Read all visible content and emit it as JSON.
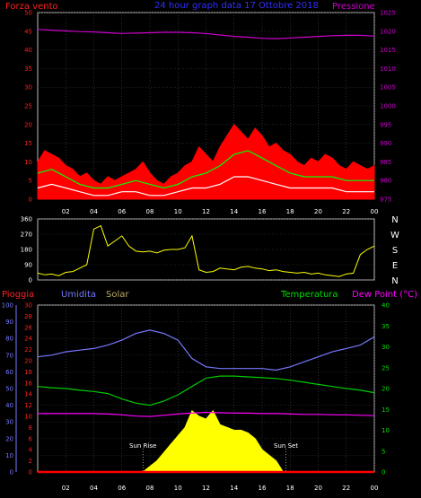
{
  "chart_data": [
    {
      "type": "line",
      "panel": "wind-pressure",
      "title": "24 hour graph data  17 Ottobre 2018",
      "left_label": "Forza vento",
      "right_label": "Pressione",
      "left_ticks": [
        "0",
        "5",
        "10",
        "15",
        "20",
        "25",
        "30",
        "35",
        "40",
        "45",
        "50"
      ],
      "right_ticks": [
        "975",
        "980",
        "985",
        "990",
        "995",
        "1000",
        "1005",
        "1010",
        "1015",
        "1020",
        "1025"
      ],
      "ylim_left": [
        0,
        50
      ],
      "ylim_right": [
        975,
        1025
      ],
      "x_ticks": [
        "02",
        "04",
        "06",
        "08",
        "10",
        "12",
        "14",
        "16",
        "18",
        "20",
        "22",
        "00"
      ],
      "series": [
        {
          "role": "gust",
          "color": "#ff0000",
          "x": [
            0,
            0.5,
            1,
            1.5,
            2,
            2.5,
            3,
            3.5,
            4,
            4.5,
            5,
            5.5,
            6,
            6.5,
            7,
            7.5,
            8,
            8.5,
            9,
            9.5,
            10,
            10.5,
            11,
            11.5,
            12,
            12.5,
            13,
            13.5,
            14,
            14.5,
            15,
            15.5,
            16,
            16.5,
            17,
            17.5,
            18,
            18.5,
            19,
            19.5,
            20,
            20.5,
            21,
            21.5,
            22,
            22.5,
            23,
            23.5,
            24
          ],
          "values": [
            10,
            13,
            12,
            11,
            9,
            8,
            6,
            7,
            5,
            4,
            6,
            5,
            6,
            7,
            8,
            10,
            7,
            5,
            4,
            6,
            7,
            9,
            10,
            14,
            12,
            10,
            14,
            17,
            20,
            18,
            16,
            19,
            17,
            14,
            15,
            13,
            12,
            10,
            9,
            11,
            10,
            12,
            11,
            9,
            8,
            10,
            9,
            8,
            9
          ]
        },
        {
          "role": "avg-wind",
          "color": "#00ff00",
          "x": [
            0,
            1,
            2,
            3,
            4,
            5,
            6,
            7,
            8,
            9,
            10,
            11,
            12,
            13,
            14,
            15,
            16,
            17,
            18,
            19,
            20,
            21,
            22,
            23,
            24
          ],
          "values": [
            7,
            8,
            6,
            4,
            3,
            3,
            4,
            5,
            4,
            3,
            4,
            6,
            7,
            9,
            12,
            13,
            11,
            9,
            7,
            6,
            6,
            6,
            5,
            5,
            5
          ]
        },
        {
          "role": "min-wind",
          "color": "#ffffff",
          "x": [
            0,
            1,
            2,
            3,
            4,
            5,
            6,
            7,
            8,
            9,
            10,
            11,
            12,
            13,
            14,
            15,
            16,
            17,
            18,
            19,
            20,
            21,
            22,
            23,
            24
          ],
          "values": [
            3,
            4,
            3,
            2,
            1,
            1,
            2,
            2,
            1,
            1,
            2,
            3,
            3,
            4,
            6,
            6,
            5,
            4,
            3,
            3,
            3,
            3,
            2,
            2,
            2
          ]
        },
        {
          "role": "pressure",
          "color": "#cc00cc",
          "x": [
            0,
            1,
            2,
            3,
            4,
            5,
            6,
            7,
            8,
            9,
            10,
            11,
            12,
            13,
            14,
            15,
            16,
            17,
            18,
            19,
            20,
            21,
            22,
            23,
            24
          ],
          "values": [
            1020.5,
            1020.3,
            1020.1,
            1019.9,
            1019.8,
            1019.6,
            1019.4,
            1019.5,
            1019.6,
            1019.7,
            1019.7,
            1019.6,
            1019.4,
            1019.0,
            1018.6,
            1018.4,
            1018.1,
            1018.0,
            1018.2,
            1018.4,
            1018.6,
            1018.8,
            1018.9,
            1018.9,
            1018.7
          ]
        }
      ]
    },
    {
      "type": "line",
      "panel": "wind-direction",
      "left_ticks": [
        "0",
        "90",
        "180",
        "270",
        "360"
      ],
      "ylim": [
        0,
        360
      ],
      "compass": [
        "N",
        "W",
        "S",
        "E",
        "N"
      ],
      "series": [
        {
          "role": "direction",
          "color": "#ffff00",
          "x": [
            0,
            0.5,
            1,
            1.5,
            2,
            2.5,
            3,
            3.5,
            4,
            4.5,
            5,
            5.5,
            6,
            6.5,
            7,
            7.5,
            8,
            8.5,
            9,
            9.5,
            10,
            10.5,
            11,
            11.5,
            12,
            12.5,
            13,
            13.5,
            14,
            14.5,
            15,
            15.5,
            16,
            16.5,
            17,
            17.5,
            18,
            18.5,
            19,
            19.5,
            20,
            20.5,
            21,
            21.5,
            22,
            22.5,
            23,
            23.5,
            24
          ],
          "values": [
            40,
            30,
            35,
            25,
            45,
            50,
            70,
            90,
            300,
            320,
            200,
            230,
            260,
            200,
            170,
            165,
            170,
            160,
            175,
            180,
            180,
            190,
            260,
            60,
            45,
            50,
            70,
            65,
            60,
            75,
            80,
            70,
            65,
            55,
            60,
            50,
            45,
            40,
            45,
            35,
            40,
            30,
            25,
            20,
            35,
            40,
            150,
            180,
            200
          ]
        }
      ]
    },
    {
      "type": "line",
      "panel": "multi",
      "labels": {
        "rain": "Pioggia",
        "humidity": "Umidita",
        "solar": "Solar",
        "temperature": "Temperatura",
        "dewpoint": "Dew Point (°C)"
      },
      "humidity_ticks": [
        "0",
        "10",
        "20",
        "30",
        "40",
        "50",
        "60",
        "70",
        "80",
        "90",
        "100"
      ],
      "rain_ticks": [
        "0",
        "2",
        "4",
        "6",
        "8",
        "10",
        "12",
        "14",
        "16",
        "18",
        "20",
        "22",
        "24",
        "26",
        "28",
        "30"
      ],
      "temp_ticks": [
        "0",
        "5",
        "10",
        "15",
        "20",
        "25",
        "30",
        "35",
        "40"
      ],
      "annotations": [
        "Sun Rise",
        "Sun Set"
      ],
      "series": [
        {
          "role": "humidity",
          "color": "#7777ff",
          "x": [
            0,
            1,
            2,
            3,
            4,
            5,
            6,
            7,
            8,
            9,
            10,
            11,
            12,
            13,
            14,
            15,
            16,
            17,
            18,
            19,
            20,
            21,
            22,
            23,
            24
          ],
          "values": [
            69,
            70,
            72,
            73,
            74,
            76,
            79,
            83,
            85,
            83,
            79,
            68,
            63,
            62,
            62,
            62,
            62,
            61,
            63,
            66,
            69,
            72,
            74,
            76,
            81
          ]
        },
        {
          "role": "temperature",
          "color": "#00cc00",
          "x": [
            0,
            1,
            2,
            3,
            4,
            5,
            6,
            7,
            8,
            9,
            10,
            11,
            12,
            13,
            14,
            15,
            16,
            17,
            18,
            19,
            20,
            21,
            22,
            23,
            24
          ],
          "values": [
            20.5,
            20.2,
            20.0,
            19.6,
            19.3,
            18.8,
            17.5,
            16.5,
            16.0,
            17.0,
            18.5,
            20.5,
            22.5,
            23.0,
            23.0,
            22.8,
            22.6,
            22.4,
            22.0,
            21.5,
            21.0,
            20.5,
            20.0,
            19.6,
            19.0
          ]
        },
        {
          "role": "dewpoint",
          "color": "#ff00ff",
          "x": [
            0,
            1,
            2,
            3,
            4,
            5,
            6,
            7,
            8,
            9,
            10,
            11,
            12,
            13,
            14,
            15,
            16,
            17,
            18,
            19,
            20,
            21,
            22,
            23,
            24
          ],
          "values": [
            14.0,
            14.0,
            14.0,
            14.0,
            14.0,
            13.9,
            13.7,
            13.4,
            13.3,
            13.6,
            13.9,
            14.1,
            14.3,
            14.2,
            14.1,
            14.1,
            14.0,
            14.0,
            13.9,
            13.8,
            13.8,
            13.7,
            13.7,
            13.6,
            13.5
          ]
        },
        {
          "role": "solar",
          "color": "#ffff00",
          "x": [
            7.5,
            8,
            8.5,
            9,
            9.5,
            10,
            10.5,
            11,
            11.5,
            12,
            12.5,
            13,
            13.5,
            14,
            14.5,
            15,
            15.5,
            16,
            16.5,
            17,
            17.5
          ],
          "values": [
            0,
            1,
            2,
            3.5,
            5,
            6.5,
            8,
            11,
            10,
            9.5,
            11,
            8.5,
            8,
            7.5,
            7.5,
            7,
            6,
            4,
            3,
            2,
            0
          ]
        },
        {
          "role": "rain",
          "color": "#ff0000",
          "x": [
            0,
            24
          ],
          "values": [
            0,
            0
          ]
        }
      ]
    }
  ]
}
